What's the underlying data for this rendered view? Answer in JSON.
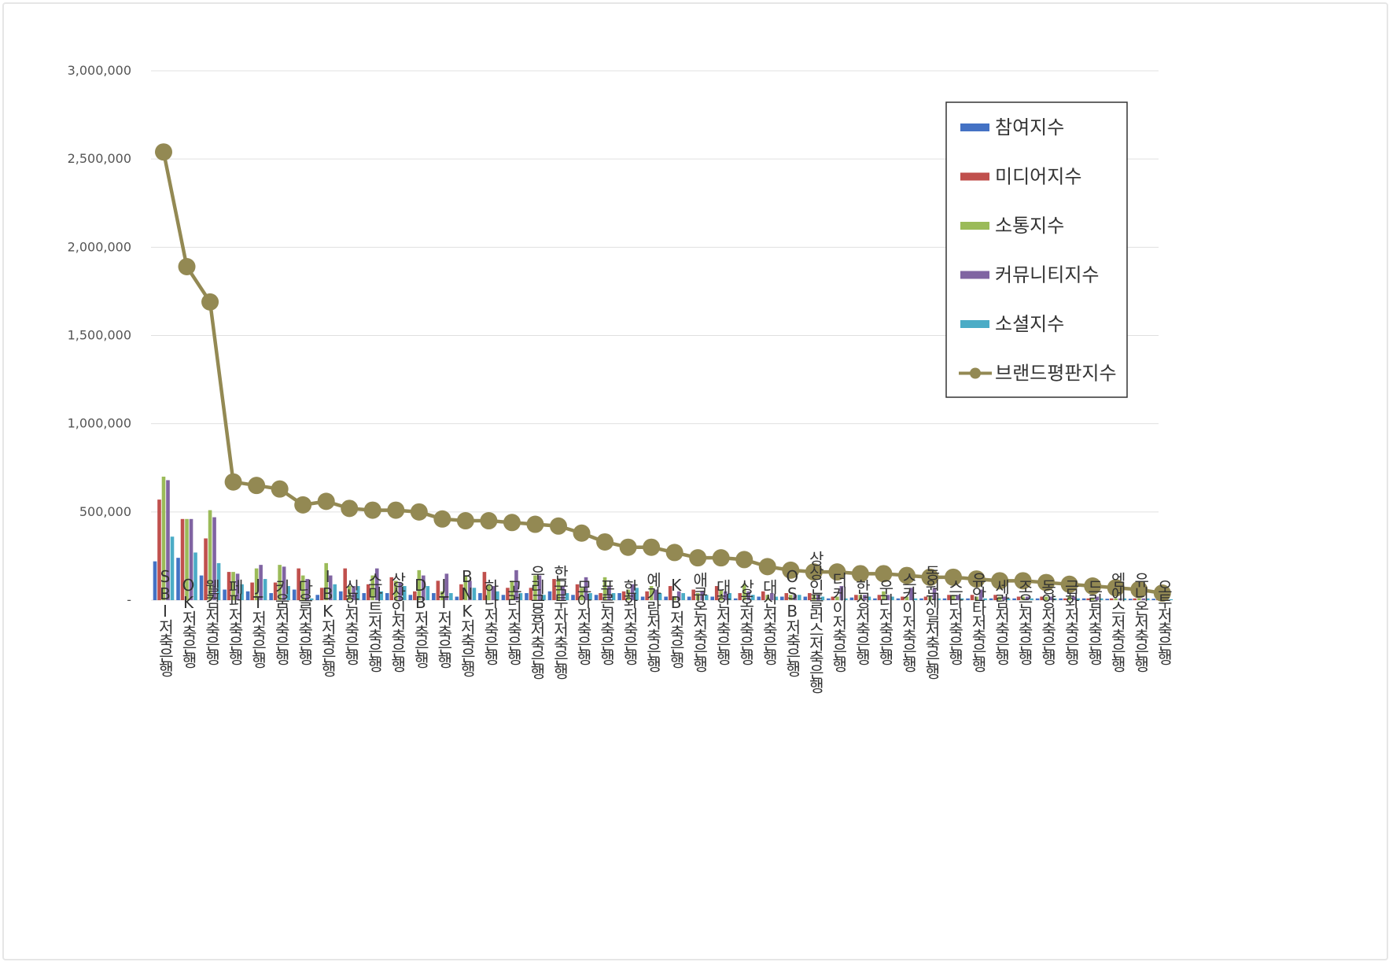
{
  "chart_data": {
    "type": "bar",
    "title": "",
    "xlabel": "",
    "ylabel": "",
    "ylim": [
      0,
      3000000
    ],
    "yticks": [
      0,
      500000,
      1000000,
      1500000,
      2000000,
      2500000,
      3000000
    ],
    "ytick_labels": [
      "-",
      "500,000",
      "1,000,000",
      "1,500,000",
      "2,000,000",
      "2,500,000",
      "3,000,000"
    ],
    "grid": true,
    "legend_position": "top-right",
    "categories": [
      "SBI저축은행",
      "OK저축은행",
      "웰컴저축은행",
      "페퍼저축은행",
      "JT저축은행",
      "키움저축은행",
      "다올저축은행",
      "IBK저축은행",
      "신한저축은행",
      "스마트저축은행",
      "상상인저축은행",
      "DB저축은행",
      "JT저축은행",
      "BNK저축은행",
      "하나저축은행",
      "고려저축은행",
      "우리금융저축은행",
      "한국투자저축은행",
      "모아저축은행",
      "푸른저축은행",
      "한화저축은행",
      "예가람저축은행",
      "KB저축은행",
      "애큐온저축은행",
      "대한저축은행",
      "상호저축은행",
      "대신저축은행",
      "OSB저축은행",
      "상상인플러스저축은행",
      "더케이저축은행",
      "한성저축은행",
      "우리저축은행",
      "스카이저축은행",
      "동원제일저축은행",
      "스타저축은행",
      "유안타저축은행",
      "세람저축은행",
      "조은저축은행",
      "동양저축은행",
      "금화저축은행",
      "드림저축은행",
      "엠에스저축은행",
      "유니온저축은행",
      "오투저축은행"
    ],
    "series": [
      {
        "name": "참여지수",
        "type": "bar",
        "color": "#4472c4",
        "values": [
          220000,
          240000,
          140000,
          60000,
          50000,
          40000,
          60000,
          30000,
          50000,
          40000,
          40000,
          30000,
          40000,
          20000,
          40000,
          30000,
          40000,
          50000,
          30000,
          30000,
          40000,
          20000,
          20000,
          20000,
          20000,
          10000,
          20000,
          20000,
          20000,
          10000,
          15000,
          10000,
          10000,
          10000,
          10000,
          10000,
          10000,
          10000,
          10000,
          10000,
          10000,
          8000,
          8000,
          8000
        ]
      },
      {
        "name": "미디어지수",
        "type": "bar",
        "color": "#c0504d",
        "values": [
          570000,
          460000,
          350000,
          160000,
          100000,
          100000,
          180000,
          70000,
          180000,
          90000,
          130000,
          50000,
          110000,
          90000,
          160000,
          70000,
          70000,
          120000,
          90000,
          40000,
          50000,
          50000,
          80000,
          60000,
          80000,
          40000,
          50000,
          40000,
          40000,
          20000,
          30000,
          30000,
          20000,
          20000,
          30000,
          30000,
          30000,
          20000,
          20000,
          10000,
          10000,
          10000,
          10000,
          5000
        ]
      },
      {
        "name": "소통지수",
        "type": "bar",
        "color": "#9bbb59",
        "values": [
          700000,
          460000,
          510000,
          160000,
          180000,
          200000,
          140000,
          210000,
          80000,
          140000,
          110000,
          170000,
          50000,
          140000,
          90000,
          110000,
          140000,
          120000,
          70000,
          130000,
          60000,
          80000,
          20000,
          40000,
          60000,
          90000,
          30000,
          30000,
          30000,
          20000,
          30000,
          50000,
          20000,
          20000,
          30000,
          20000,
          20000,
          20000,
          20000,
          20000,
          10000,
          10000,
          10000,
          10000
        ]
      },
      {
        "name": "커뮤니티지수",
        "type": "bar",
        "color": "#8064a2",
        "values": [
          680000,
          460000,
          470000,
          150000,
          200000,
          190000,
          120000,
          140000,
          80000,
          180000,
          100000,
          140000,
          150000,
          110000,
          80000,
          170000,
          140000,
          80000,
          130000,
          80000,
          90000,
          60000,
          50000,
          50000,
          50000,
          50000,
          40000,
          30000,
          30000,
          80000,
          30000,
          30000,
          70000,
          70000,
          30000,
          60000,
          20000,
          20000,
          20000,
          20000,
          20000,
          10000,
          10000,
          10000
        ]
      },
      {
        "name": "소셜지수",
        "type": "bar",
        "color": "#4bacc6",
        "values": [
          360000,
          270000,
          210000,
          90000,
          120000,
          80000,
          10000,
          90000,
          80000,
          50000,
          80000,
          80000,
          40000,
          70000,
          50000,
          40000,
          30000,
          40000,
          40000,
          40000,
          70000,
          40000,
          40000,
          30000,
          40000,
          30000,
          20000,
          30000,
          20000,
          10000,
          20000,
          20000,
          10000,
          10000,
          10000,
          10000,
          10000,
          10000,
          10000,
          10000,
          10000,
          10000,
          10000,
          5000
        ]
      },
      {
        "name": "브랜드평판지수",
        "type": "line",
        "color": "#938953",
        "values": [
          2540000,
          1890000,
          1690000,
          670000,
          650000,
          630000,
          540000,
          560000,
          520000,
          510000,
          510000,
          500000,
          460000,
          450000,
          450000,
          440000,
          430000,
          420000,
          380000,
          330000,
          300000,
          300000,
          270000,
          240000,
          240000,
          230000,
          190000,
          170000,
          160000,
          160000,
          150000,
          150000,
          140000,
          130000,
          130000,
          120000,
          110000,
          110000,
          100000,
          90000,
          80000,
          70000,
          60000,
          40000
        ]
      }
    ]
  }
}
